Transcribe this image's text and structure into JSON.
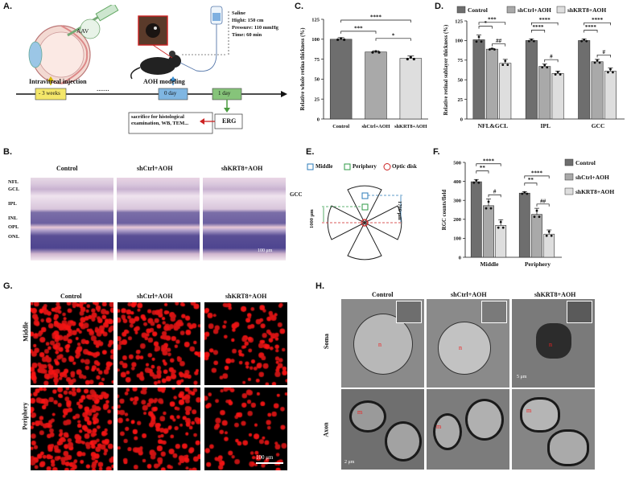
{
  "panel_labels": {
    "a": "A.",
    "b": "B.",
    "c": "C.",
    "d": "D.",
    "e": "E.",
    "f": "F.",
    "g": "G.",
    "h": "H."
  },
  "panelA": {
    "aav": "AAV",
    "intravitreal": "Intravitreal injection",
    "aoh_modeling": "AOH modeling",
    "saline_lines": [
      "Saline",
      "Hight: 150 cm",
      "Pressure: 110 mmHg",
      "Time: 60 min"
    ],
    "timeline": {
      "minus3w": "- 3 weeks",
      "dots": ".......",
      "day0": "0 day",
      "day1": "1 day"
    },
    "sacrifice": "sacrifice for histological examination, WB, TEM...",
    "erg": "ERG"
  },
  "panelB": {
    "cols": [
      "Control",
      "shCtrl+AOH",
      "shKRT8+AOH"
    ],
    "layers": [
      "NFL",
      "GCL",
      "IPL",
      "INL",
      "OPL",
      "ONL"
    ],
    "gcc": "GCC",
    "scale": "100 μm"
  },
  "panelE": {
    "legend": [
      "Middle",
      "Periphery",
      "Optic disk"
    ],
    "dim1": "1700 μm",
    "dim2": "1000 μm"
  },
  "panelG": {
    "cols": [
      "Control",
      "shCtrl+AOH",
      "shKRT8+AOH"
    ],
    "rows": [
      "Middle",
      "Periphery"
    ],
    "scale": "100 μm"
  },
  "panelH": {
    "cols": [
      "Control",
      "shCtrl+AOH",
      "shKRT8+AOH"
    ],
    "rows": [
      "Soma",
      "Axon"
    ],
    "labels": {
      "m": "m",
      "n": "n"
    },
    "scale1": "5 μm",
    "scale2": "2 μm"
  },
  "colors": {
    "control": "#6e6e6e",
    "shctrl": "#a9a9a9",
    "shkrt8": "#dedede"
  },
  "chart_data": [
    {
      "id": "C",
      "type": "bar",
      "ylabel": "Relative whole retina thickness (%)",
      "categories": [
        "Control",
        "shCtrl+AOH",
        "shKRT8+AOH"
      ],
      "values": [
        100,
        84,
        76
      ],
      "errors": [
        2,
        1.5,
        3
      ],
      "ylim": [
        0,
        125
      ],
      "yticks": [
        0,
        25,
        50,
        75,
        100,
        125
      ],
      "sig": [
        {
          "from": 0,
          "to": 1,
          "label": "***"
        },
        {
          "from": 1,
          "to": 2,
          "label": "*"
        },
        {
          "from": 0,
          "to": 2,
          "label": "****"
        }
      ]
    },
    {
      "id": "D",
      "type": "bar",
      "ylabel": "Relative retinal sublayer thickness (%)",
      "categories": [
        "NFL&GCL",
        "IPL",
        "GCC"
      ],
      "series": [
        {
          "name": "Control",
          "values": [
            101,
            100,
            100
          ],
          "errors": [
            6,
            2,
            2
          ]
        },
        {
          "name": "shCtrl+AOH",
          "values": [
            89,
            67,
            73
          ],
          "errors": [
            1,
            3,
            3
          ]
        },
        {
          "name": "shKRT8+AOH",
          "values": [
            71,
            58,
            61
          ],
          "errors": [
            5,
            3,
            4
          ]
        }
      ],
      "ylim": [
        0,
        125
      ],
      "yticks": [
        0,
        25,
        50,
        75,
        100,
        125
      ],
      "sig": [
        [
          {
            "from": 0,
            "to": 1,
            "label": "*"
          },
          {
            "from": 1,
            "to": 2,
            "label": "##"
          },
          {
            "from": 0,
            "to": 2,
            "label": "***"
          }
        ],
        [
          {
            "from": 0,
            "to": 1,
            "label": "****"
          },
          {
            "from": 1,
            "to": 2,
            "label": "#"
          },
          {
            "from": 0,
            "to": 2,
            "label": "****"
          }
        ],
        [
          {
            "from": 0,
            "to": 1,
            "label": "****"
          },
          {
            "from": 1,
            "to": 2,
            "label": "#"
          },
          {
            "from": 0,
            "to": 2,
            "label": "****"
          }
        ]
      ],
      "legend": "top"
    },
    {
      "id": "F",
      "type": "bar",
      "ylabel": "RGC counts/field",
      "categories": [
        "Middle",
        "Periphery"
      ],
      "series": [
        {
          "name": "Control",
          "values": [
            398,
            338
          ],
          "errors": [
            12,
            8
          ]
        },
        {
          "name": "shCtrl+AOH",
          "values": [
            272,
            226
          ],
          "errors": [
            35,
            32
          ]
        },
        {
          "name": "shKRT8+AOH",
          "values": [
            168,
            122
          ],
          "errors": [
            30,
            22
          ]
        }
      ],
      "ylim": [
        0,
        500
      ],
      "yticks": [
        0,
        100,
        200,
        300,
        400,
        500
      ],
      "sig": [
        [
          {
            "from": 0,
            "to": 1,
            "label": "**"
          },
          {
            "from": 1,
            "to": 2,
            "label": "#"
          },
          {
            "from": 0,
            "to": 2,
            "label": "****"
          }
        ],
        [
          {
            "from": 0,
            "to": 1,
            "label": "**"
          },
          {
            "from": 1,
            "to": 2,
            "label": "##"
          },
          {
            "from": 0,
            "to": 2,
            "label": "****"
          }
        ]
      ],
      "legend": "right"
    }
  ]
}
